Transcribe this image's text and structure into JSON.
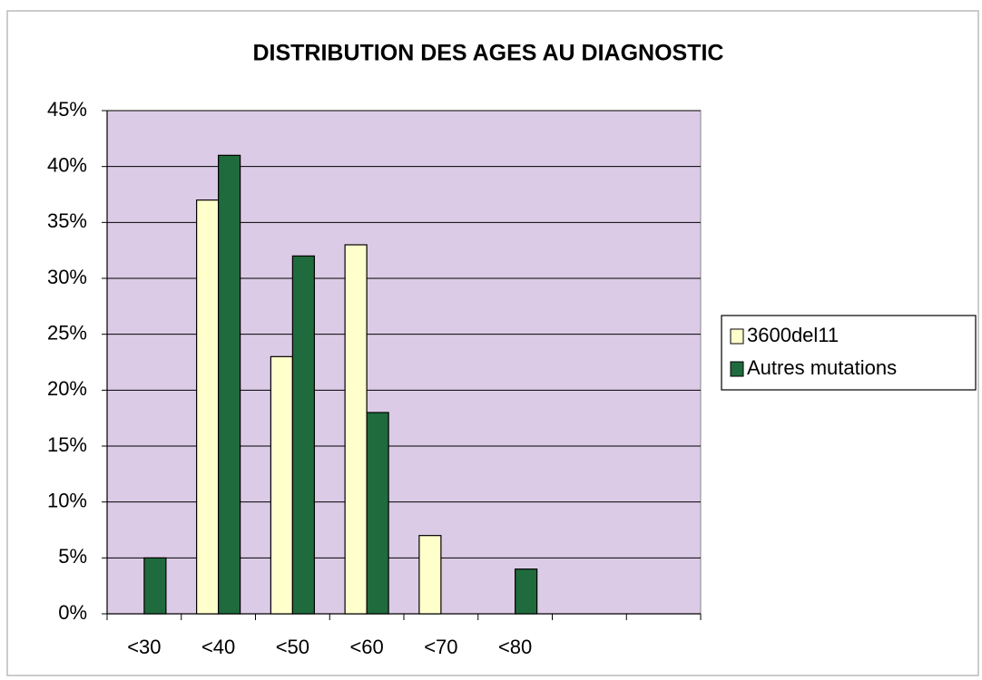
{
  "chart_data": {
    "type": "bar",
    "title": "DISTRIBUTION DES AGES AU DIAGNOSTIC",
    "categories": [
      "<30",
      "<40",
      "<50",
      "<60",
      "<70",
      "<80",
      null,
      null
    ],
    "series": [
      {
        "name": "3600del11",
        "color": "#ffffcc",
        "values": [
          0,
          37,
          23,
          33,
          7,
          0,
          null,
          null
        ]
      },
      {
        "name": "Autres mutations",
        "color": "#1f6b3d",
        "values": [
          5,
          41,
          32,
          18,
          0,
          4,
          null,
          null
        ]
      }
    ],
    "ylim": [
      0,
      45
    ],
    "yticks": [
      {
        "value": 0,
        "label": "0%"
      },
      {
        "value": 5,
        "label": "5%"
      },
      {
        "value": 10,
        "label": "10%"
      },
      {
        "value": 15,
        "label": "15%"
      },
      {
        "value": 20,
        "label": "20%"
      },
      {
        "value": 25,
        "label": "25%"
      },
      {
        "value": 30,
        "label": "30%"
      },
      {
        "value": 35,
        "label": "35%"
      },
      {
        "value": 40,
        "label": "40%"
      },
      {
        "value": 45,
        "label": "45%"
      }
    ],
    "grid": true,
    "legend": "right",
    "plot_background": "#dccbe6"
  }
}
